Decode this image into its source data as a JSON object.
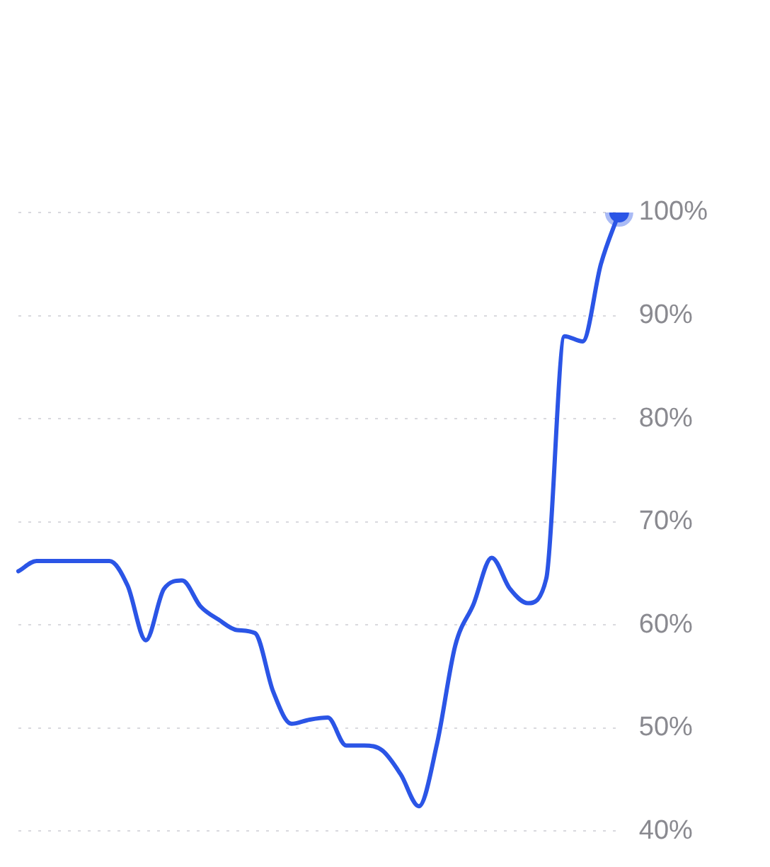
{
  "chart_data": {
    "type": "line",
    "categories": [
      null,
      null,
      null,
      null,
      null,
      null,
      null,
      null,
      null,
      null,
      null,
      null,
      null,
      null,
      null,
      null,
      null,
      null,
      null,
      null,
      null,
      null,
      null,
      null,
      null,
      null,
      null,
      null,
      null,
      null,
      null,
      null,
      null,
      null
    ],
    "series": [
      {
        "color": "#2b55e6",
        "values": [
          65.2,
          66.2,
          66.2,
          66.2,
          66.2,
          66.2,
          63.8,
          58.5,
          63.5,
          64.3,
          61.8,
          60.5,
          59.5,
          59.2,
          53.5,
          50.4,
          50.8,
          51.0,
          48.3,
          48.3,
          47.8,
          45.5,
          42.4,
          48.5,
          58.0,
          62.0,
          66.5,
          63.5,
          62.1,
          64.5,
          88.0,
          87.5,
          95.0,
          100
        ]
      }
    ],
    "ylim": [
      40,
      100
    ],
    "yticks": [
      {
        "value": 40,
        "label": "40%"
      },
      {
        "value": 50,
        "label": "50%"
      },
      {
        "value": 60,
        "label": "60%"
      },
      {
        "value": 70,
        "label": "70%"
      },
      {
        "value": 80,
        "label": "80%"
      },
      {
        "value": 90,
        "label": "90%"
      },
      {
        "value": 100,
        "label": "100%"
      }
    ],
    "grid": "y",
    "tick_labels": "y",
    "legend": false,
    "marker": "none",
    "line_style": "solid"
  }
}
